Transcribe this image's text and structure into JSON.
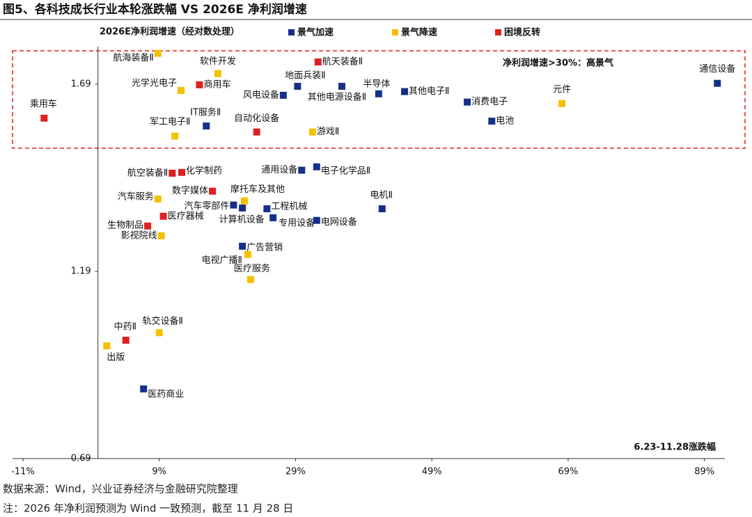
{
  "chart_data": {
    "type": "scatter",
    "title": "图5、各科技成长行业本轮涨跌幅  VS 2026E 净利润增速",
    "y_label": "2026E净利润增速（经对数处理）",
    "x_label": "6.23-11.28涨跌幅",
    "annotation": "净利润增速>30%：高景气",
    "annotation_color": "#e02020",
    "source": "数据来源：Wind，兴业证券经济与金融研究院整理",
    "note": "注：2026 年净利润预测为 Wind 一致预测，截至 11 月 28 日",
    "xlim": [
      -11,
      92
    ],
    "ylim": [
      0.69,
      1.79
    ],
    "xticks": [
      {
        "value": -11,
        "label": "-11%"
      },
      {
        "value": 9,
        "label": "9%"
      },
      {
        "value": 29,
        "label": "29%"
      },
      {
        "value": 49,
        "label": "49%"
      },
      {
        "value": 69,
        "label": "69%"
      },
      {
        "value": 89,
        "label": "89%"
      }
    ],
    "yticks": [
      0.69,
      1.19,
      1.69
    ],
    "grid": false,
    "series": [
      {
        "name": "景气加速",
        "color": "#14318a",
        "labels": [
          "通信设备",
          "其他电子Ⅱ",
          "消费电子",
          "电池",
          "半导体",
          "其他电源设备Ⅱ",
          "地面兵装Ⅱ",
          "风电设备",
          "IT服务Ⅱ",
          "通用设备",
          "电子化学品Ⅱ",
          "电机Ⅱ",
          "汽车零部件",
          "计算机设备",
          "工程机械",
          "专用设备",
          "电网设备",
          "广告营销",
          "医药商业"
        ],
        "x": [
          90.9,
          45.0,
          54.2,
          57.8,
          41.2,
          35.8,
          29.3,
          27.2,
          15.9,
          29.9,
          32.1,
          41.7,
          19.9,
          21.2,
          24.8,
          25.7,
          32.1,
          21.2,
          6.7
        ],
        "values": [
          1.692,
          1.67,
          1.642,
          1.591,
          1.664,
          1.684,
          1.684,
          1.66,
          1.578,
          1.46,
          1.469,
          1.357,
          1.367,
          1.359,
          1.357,
          1.333,
          1.326,
          1.257,
          0.876
        ]
      },
      {
        "name": "景气降速",
        "color": "#f5c000",
        "labels": [
          "航海装备Ⅱ",
          "软件开发",
          "光学光电子",
          "元件",
          "军工电子Ⅱ",
          "游戏Ⅱ",
          "汽车服务",
          "摩托车及其他",
          "影视院线",
          "电视广播Ⅱ",
          "医疗服务",
          "轨交设备Ⅱ",
          "出版"
        ],
        "x": [
          8.8,
          17.6,
          12.2,
          68.1,
          11.3,
          31.5,
          8.8,
          21.5,
          9.3,
          22.0,
          22.4,
          9.0,
          1.3
        ],
        "values": [
          1.772,
          1.718,
          1.673,
          1.638,
          1.551,
          1.562,
          1.383,
          1.378,
          1.285,
          1.235,
          1.168,
          1.026,
          0.991
        ]
      },
      {
        "name": "困境反转",
        "color": "#e02020",
        "labels": [
          "航天装备Ⅱ",
          "商用车",
          "乘用车",
          "自动化设备",
          "航空装备Ⅱ",
          "化学制药",
          "数字媒体",
          "医疗器械",
          "生物制品",
          "中药Ⅱ"
        ],
        "x": [
          32.3,
          14.9,
          -7.9,
          23.3,
          10.9,
          12.3,
          16.8,
          9.6,
          7.3,
          4.1
        ],
        "values": [
          1.749,
          1.688,
          1.599,
          1.562,
          1.452,
          1.454,
          1.404,
          1.337,
          1.311,
          1.006
        ]
      }
    ]
  }
}
